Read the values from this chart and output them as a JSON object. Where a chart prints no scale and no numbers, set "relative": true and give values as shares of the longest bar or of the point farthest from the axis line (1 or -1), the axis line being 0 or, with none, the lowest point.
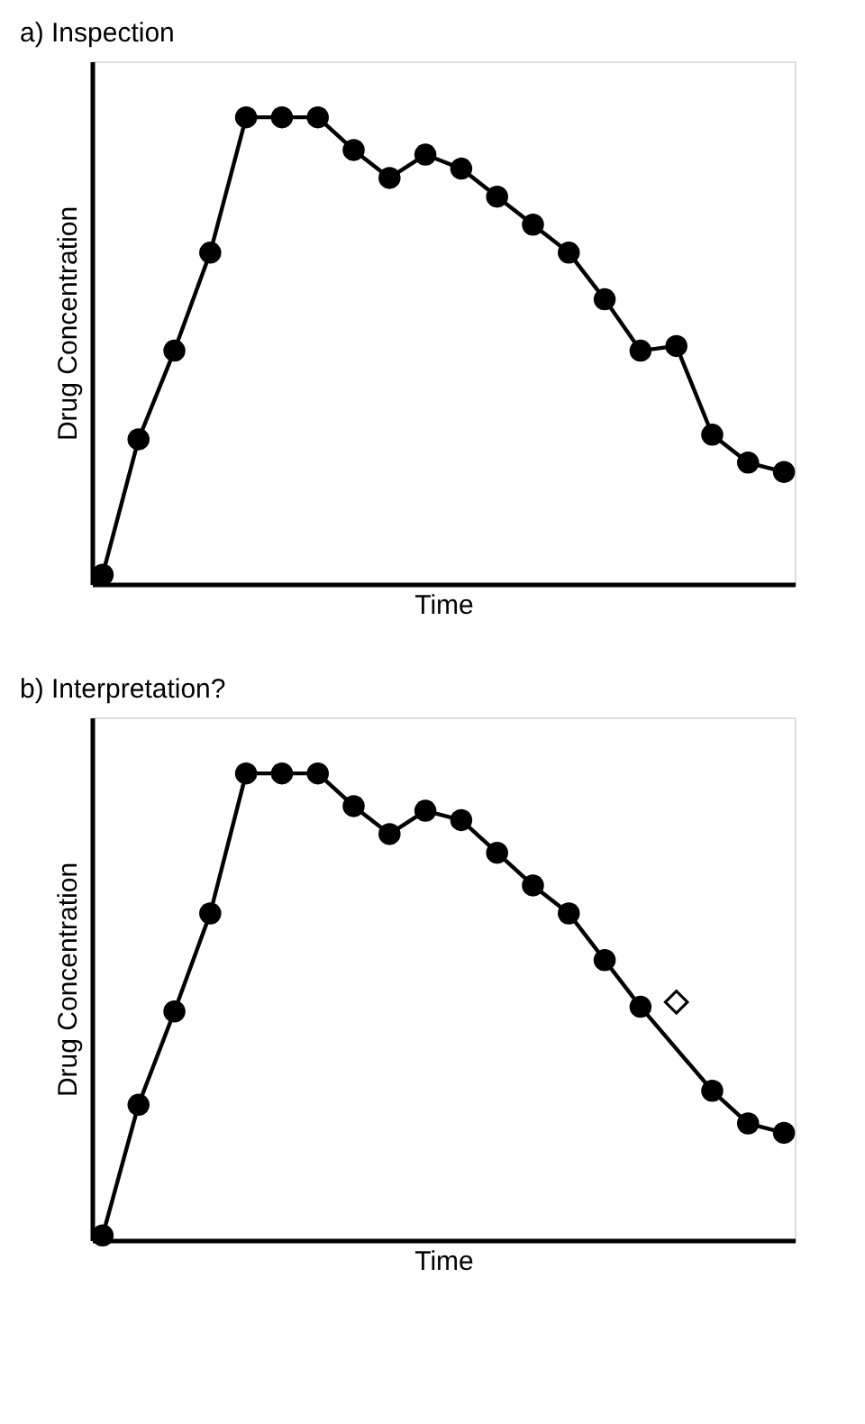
{
  "chart_data": [
    {
      "type": "line",
      "title": "a) Inspection",
      "xlabel": "Time",
      "ylabel": "Drug Concentration",
      "relative": true,
      "marker": "circle",
      "line_style": "solid",
      "grid": false,
      "tick_labels": false,
      "categories": [
        null,
        null,
        null,
        null,
        null,
        null,
        null,
        null,
        null,
        null,
        null,
        null,
        null,
        null,
        null,
        null,
        null,
        null,
        null,
        null
      ],
      "series": [
        {
          "color": "#000000",
          "values": [
            0.02,
            0.31,
            0.5,
            0.71,
            1.0,
            1.0,
            1.0,
            0.93,
            0.87,
            0.92,
            0.89,
            0.83,
            0.77,
            0.71,
            0.61,
            0.5,
            0.51,
            0.32,
            0.26,
            0.24
          ]
        }
      ]
    },
    {
      "type": "line",
      "title": "b) Interpretation?",
      "xlabel": "Time",
      "ylabel": "Drug Concentration",
      "relative": true,
      "marker": "circle",
      "line_style": "solid",
      "grid": false,
      "tick_labels": false,
      "categories": [
        null,
        null,
        null,
        null,
        null,
        null,
        null,
        null,
        null,
        null,
        null,
        null,
        null,
        null,
        null,
        null,
        null,
        null,
        null,
        null
      ],
      "series": [
        {
          "color": "#000000",
          "values": [
            0.01,
            0.29,
            0.49,
            0.7,
            1.0,
            1.0,
            1.0,
            0.93,
            0.87,
            0.92,
            0.9,
            0.83,
            0.76,
            0.7,
            0.6,
            0.5,
            null,
            0.32,
            0.25,
            0.23
          ]
        },
        {
          "type": "scatter",
          "marker": "diamond",
          "color": "#000000",
          "values": [
            null,
            null,
            null,
            null,
            null,
            null,
            null,
            null,
            null,
            null,
            null,
            null,
            null,
            null,
            null,
            null,
            0.51,
            null,
            null,
            null
          ]
        }
      ]
    }
  ]
}
